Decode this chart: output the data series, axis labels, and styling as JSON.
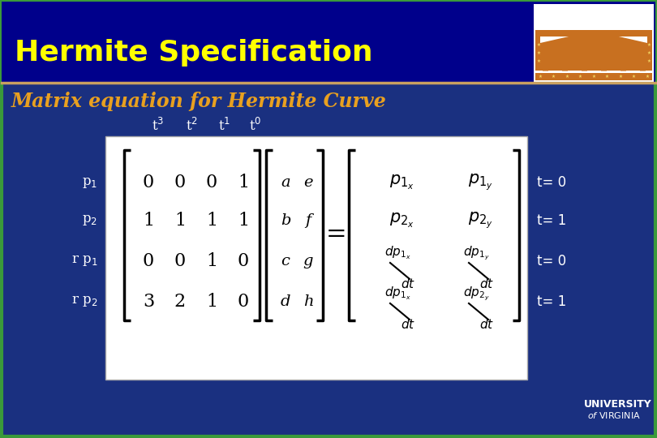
{
  "bg_color": "#1a3080",
  "header_bg": "#00008b",
  "border_color_top": "#4caf50",
  "border_color_bottom": "#4caf50",
  "title": "Hermite Specification",
  "title_color": "#ffff00",
  "subtitle": "Matrix equation for Hermite Curve",
  "subtitle_color": "#e8a020",
  "header_line_color": "#c8a06e",
  "matrix_bg": "#ffffff",
  "matrix_text_color": "#000000",
  "label_color": "#ffffff",
  "t_label_color": "#ffffff",
  "t_labels": [
    "t$^3$",
    "t$^2$",
    "t$^1$",
    "t$^0$"
  ],
  "row_labels_left": [
    "p$_1$",
    "p$_2$",
    "r p$_1$",
    "r p$_2$"
  ],
  "right_labels": [
    "t= 0",
    "t= 1",
    "t= 0",
    "t= 1"
  ],
  "matrix_data": [
    [
      0,
      0,
      0,
      1
    ],
    [
      1,
      1,
      1,
      1
    ],
    [
      0,
      0,
      1,
      0
    ],
    [
      3,
      2,
      1,
      0
    ]
  ],
  "logo_bg": "#ffffff",
  "logo_orange": "#c87020",
  "uva_text_color": "#ffffff"
}
